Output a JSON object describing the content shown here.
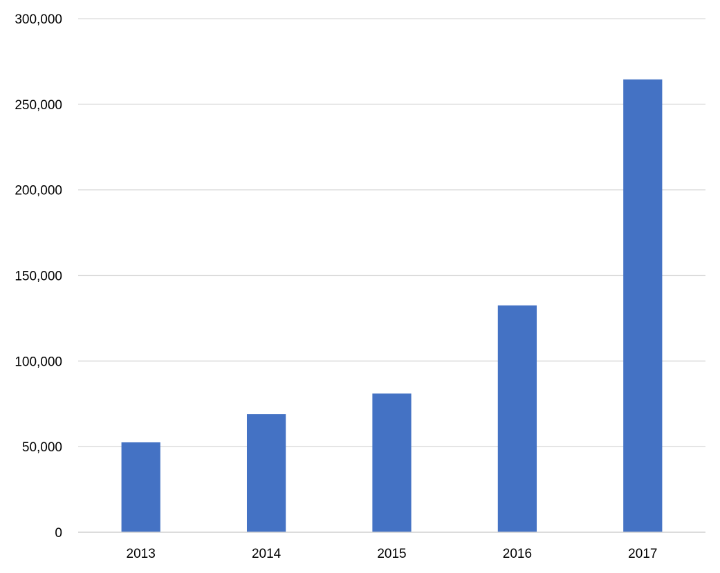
{
  "chart_data": {
    "type": "bar",
    "title": "",
    "xlabel": "",
    "ylabel": "",
    "categories": [
      "2013",
      "2014",
      "2015",
      "2016",
      "2017"
    ],
    "values": [
      52500,
      69000,
      81000,
      132500,
      264500
    ],
    "ylim": [
      0,
      300000
    ],
    "yticks": [
      0,
      50000,
      100000,
      150000,
      200000,
      250000,
      300000
    ],
    "ytick_labels": [
      "0",
      "50,000",
      "100,000",
      "150,000",
      "200,000",
      "250,000",
      "300,000"
    ],
    "grid": true,
    "legend": "none",
    "bar_color": "#4472c4"
  }
}
